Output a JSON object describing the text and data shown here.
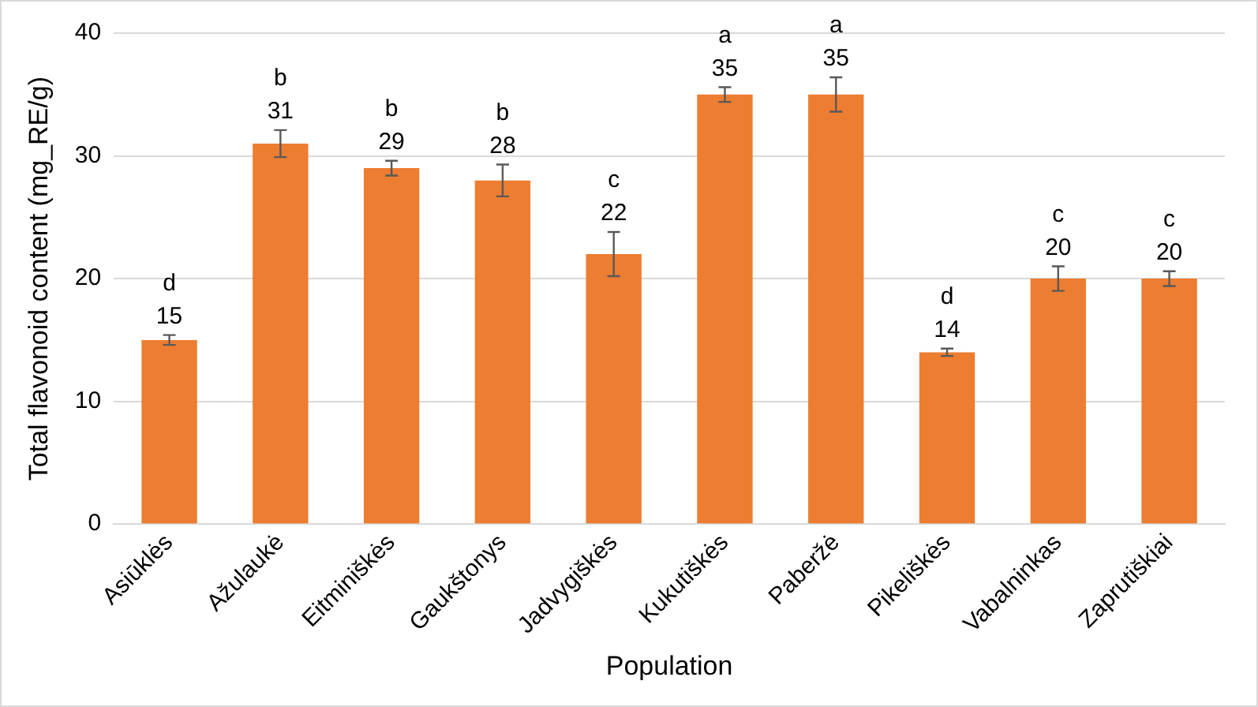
{
  "chart_data": {
    "type": "bar",
    "xlabel": "Population",
    "ylabel": "Total flavonoid content (mg_RE/g)",
    "categories": [
      "Asiūklės",
      "Ažulaukė",
      "Eitminiškės",
      "Gaukštonys",
      "Jadvygiškės",
      "Kukutiškės",
      "Paberžė",
      "Pikeliškės",
      "Vabalninkas",
      "Zaprutiškiai"
    ],
    "values": [
      15,
      31,
      29,
      28,
      22,
      35,
      35,
      14,
      20,
      20
    ],
    "errors": [
      0.4,
      1.1,
      0.6,
      1.3,
      1.8,
      0.6,
      1.4,
      0.3,
      1.0,
      0.6
    ],
    "color": "#ed7d31",
    "ylim": [
      0,
      40
    ],
    "yticks": [
      0,
      10,
      20,
      30,
      40
    ],
    "grid": "y",
    "legend": false,
    "data_labels": true,
    "annotations": [
      {
        "text": "d",
        "x": "Asiūklės",
        "y": 15
      },
      {
        "text": "b",
        "x": "Ažulaukė",
        "y": 31
      },
      {
        "text": "b",
        "x": "Eitminiškės",
        "y": 29
      },
      {
        "text": "b",
        "x": "Gaukštonys",
        "y": 28
      },
      {
        "text": "c",
        "x": "Jadvygiškės",
        "y": 22
      },
      {
        "text": "a",
        "x": "Kukutiškės",
        "y": 35
      },
      {
        "text": "a",
        "x": "Paberžė",
        "y": 35
      },
      {
        "text": "d",
        "x": "Pikeliškės",
        "y": 14
      },
      {
        "text": "c",
        "x": "Vabalninkas",
        "y": 20
      },
      {
        "text": "c",
        "x": "Zaprutiškiai",
        "y": 20
      }
    ]
  }
}
